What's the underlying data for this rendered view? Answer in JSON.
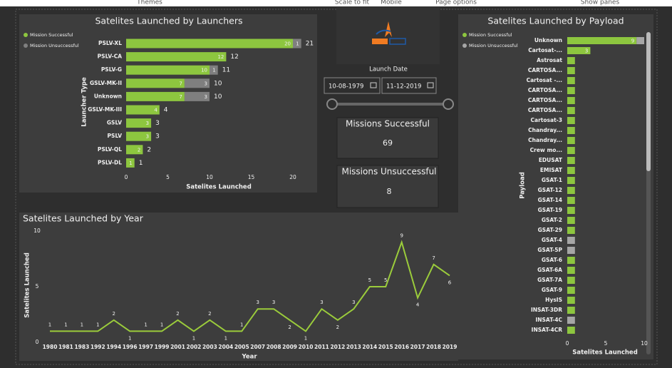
{
  "menu": [
    "Themes",
    "Scale to fit",
    "Mobile",
    "Page options",
    "Show panes"
  ],
  "date_filter": {
    "label": "Launch Date",
    "start": "10-08-1979",
    "end": "11-12-2019"
  },
  "cards": [
    {
      "title": "Missions Successful",
      "value": 69
    },
    {
      "title": "Missions Unsuccessful",
      "value": 8
    }
  ],
  "chart_data": [
    {
      "type": "bar",
      "orientation": "horizontal",
      "stacked": true,
      "title": "Satelites Launched by Launchers",
      "y_label": "Launcher Type",
      "x_label": "Satelites Launched",
      "categories": [
        "PSLV-XL",
        "PSLV-CA",
        "PSLV-G",
        "GSLV-MK-II",
        "Unknown",
        "GSLV-MK-III",
        "GSLV",
        "PSLV",
        "PSLV-QL",
        "PSLV-DL"
      ],
      "series": [
        {
          "name": "Mission Successful",
          "color": "#8dc63f",
          "values": [
            20,
            12,
            10,
            7,
            7,
            4,
            3,
            3,
            2,
            1
          ]
        },
        {
          "name": "Mission Unsuccessful",
          "color": "#7f7f7f",
          "values": [
            1,
            null,
            1,
            3,
            3,
            null,
            null,
            null,
            null,
            null
          ]
        }
      ],
      "totals": [
        21,
        12,
        11,
        10,
        10,
        4,
        3,
        3,
        2,
        1
      ],
      "xlim": [
        0,
        22
      ],
      "xticks": [
        0,
        5,
        10,
        15,
        20
      ]
    },
    {
      "type": "line",
      "title": "Satelites Launched by Year",
      "x_label": "Year",
      "y_label": "Satelites Launched",
      "categories": [
        "1980",
        "1981",
        "1983",
        "1992",
        "1994",
        "1996",
        "1997",
        "1999",
        "2001",
        "2002",
        "2003",
        "2004",
        "2005",
        "2007",
        "2008",
        "2009",
        "2010",
        "2011",
        "2012",
        "2013",
        "2014",
        "2015",
        "2016",
        "2017",
        "2018",
        "2019"
      ],
      "values": [
        1,
        1,
        1,
        1,
        2,
        1,
        1,
        1,
        2,
        1,
        2,
        1,
        1,
        3,
        3,
        2,
        1,
        3,
        2,
        3,
        5,
        5,
        9,
        4,
        7,
        6
      ],
      "color": "#9bcc3b",
      "ylim": [
        0,
        10
      ],
      "yticks": [
        0,
        5,
        10
      ]
    },
    {
      "type": "bar",
      "orientation": "horizontal",
      "stacked": true,
      "title": "Satelites Launched by Payload",
      "y_label": "Payload",
      "x_label": "Satelites Launched",
      "categories": [
        "Unknown",
        "Cartosat-...",
        "Astrosat",
        "CARTOSA...",
        "Cartosat -...",
        "CARTOSA...",
        "CARTOSA...",
        "CARTOSA...",
        "Cartosat-3",
        "Chandray...",
        "Chandray...",
        "Crew mo...",
        "EDUSAT",
        "EMISAT",
        "GSAT-1",
        "GSAT-12",
        "GSAT-14",
        "GSAT-19",
        "GSAT-2",
        "GSAT-29",
        "GSAT-4",
        "GSAT-5P",
        "GSAT-6",
        "GSAT-6A",
        "GSAT-7A",
        "GSAT-9",
        "HysIS",
        "INSAT-3DR",
        "INSAT-4C",
        "INSAT-4CR"
      ],
      "series": [
        {
          "name": "Mission Successful",
          "color": "#8dc63f",
          "values": [
            9,
            3,
            1,
            1,
            1,
            1,
            1,
            1,
            1,
            1,
            1,
            1,
            1,
            1,
            1,
            1,
            1,
            1,
            1,
            1,
            null,
            null,
            1,
            1,
            1,
            1,
            1,
            1,
            null,
            1
          ]
        },
        {
          "name": "Mission Unsuccessful",
          "color": "#a6a6a6",
          "values": [
            1,
            null,
            null,
            null,
            null,
            null,
            null,
            null,
            null,
            null,
            null,
            null,
            null,
            null,
            null,
            null,
            null,
            null,
            null,
            null,
            1,
            1,
            null,
            null,
            null,
            null,
            null,
            null,
            1,
            null
          ]
        }
      ],
      "xlim": [
        0,
        10
      ],
      "xticks": [
        0,
        5,
        10
      ]
    }
  ]
}
